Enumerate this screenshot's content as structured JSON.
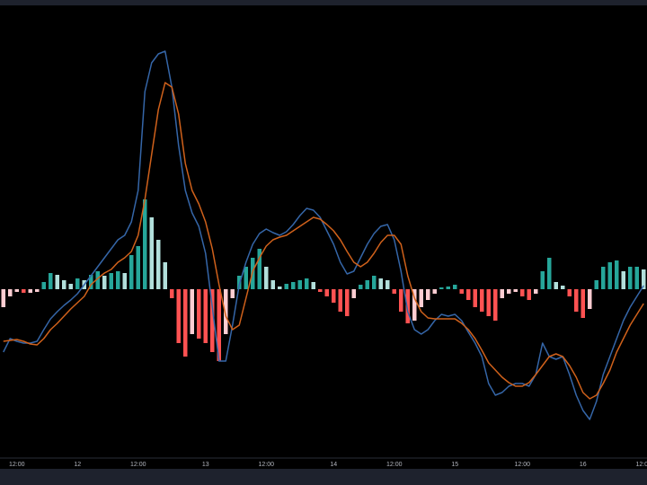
{
  "chart_data": {
    "type": "combo",
    "categories": [
      null,
      null,
      "12:00",
      null,
      null,
      null,
      null,
      null,
      null,
      null,
      null,
      "12",
      null,
      null,
      null,
      null,
      null,
      null,
      null,
      null,
      "12:00",
      null,
      null,
      null,
      null,
      null,
      null,
      null,
      null,
      null,
      "13",
      null,
      null,
      null,
      null,
      null,
      null,
      null,
      null,
      "12:00",
      null,
      null,
      null,
      null,
      null,
      null,
      null,
      null,
      null,
      "14",
      null,
      null,
      null,
      null,
      null,
      null,
      null,
      null,
      "12:00",
      null,
      null,
      null,
      null,
      null,
      null,
      null,
      null,
      "15",
      null,
      null,
      null,
      null,
      null,
      null,
      null,
      null,
      null,
      "12:00",
      null,
      null,
      null,
      null,
      null,
      null,
      null,
      null,
      "16",
      null,
      null,
      null,
      null,
      null,
      null,
      null,
      null,
      "12:00"
    ],
    "ylim": [
      -188,
      317
    ],
    "background": "#000000",
    "series": [
      {
        "kind": "bar",
        "colors": {
          "rising_above": "#26a69a",
          "falling_above": "#b2dfdb",
          "rising_below": "#ffcdd2",
          "falling_below": "#ff5252"
        },
        "values": [
          -20,
          -8,
          -3,
          -4,
          -4,
          -3,
          8,
          18,
          16,
          10,
          6,
          12,
          10,
          16,
          20,
          15,
          18,
          20,
          18,
          38,
          48,
          100,
          80,
          55,
          30,
          -10,
          -60,
          -75,
          -50,
          -55,
          -60,
          -70,
          -80,
          -50,
          -10,
          15,
          25,
          35,
          45,
          25,
          10,
          3,
          6,
          8,
          10,
          12,
          8,
          -3,
          -8,
          -15,
          -25,
          -30,
          -10,
          5,
          10,
          15,
          12,
          10,
          -5,
          -25,
          -38,
          -35,
          -20,
          -12,
          -5,
          2,
          3,
          5,
          -5,
          -12,
          -20,
          -25,
          -30,
          -35,
          -10,
          -5,
          -3,
          -8,
          -12,
          -5,
          20,
          35,
          8,
          4,
          -8,
          -25,
          -32,
          -22,
          10,
          25,
          30,
          32,
          20,
          25,
          25,
          22
        ]
      },
      {
        "kind": "line",
        "color": "#3566a8",
        "values": [
          -70,
          -55,
          -58,
          -60,
          -60,
          -58,
          -45,
          -33,
          -25,
          -18,
          -12,
          -5,
          5,
          15,
          25,
          35,
          45,
          55,
          60,
          75,
          110,
          220,
          252,
          262,
          265,
          225,
          160,
          110,
          85,
          70,
          40,
          -20,
          -80,
          -80,
          -40,
          5,
          30,
          50,
          62,
          67,
          63,
          60,
          64,
          72,
          82,
          90,
          88,
          80,
          65,
          50,
          30,
          17,
          20,
          35,
          50,
          62,
          70,
          72,
          55,
          20,
          -25,
          -45,
          -50,
          -45,
          -35,
          -28,
          -30,
          -28,
          -35,
          -48,
          -60,
          -75,
          -105,
          -118,
          -115,
          -108,
          -105,
          -105,
          -108,
          -95,
          -60,
          -75,
          -78,
          -75,
          -95,
          -118,
          -135,
          -145,
          -125,
          -95,
          -75,
          -55,
          -35,
          -20,
          -8,
          4
        ]
      },
      {
        "kind": "line",
        "color": "#d0611b",
        "values": [
          -58,
          -57,
          -56,
          -58,
          -61,
          -62,
          -55,
          -45,
          -38,
          -30,
          -22,
          -15,
          -8,
          5,
          12,
          18,
          22,
          30,
          35,
          42,
          60,
          100,
          150,
          200,
          230,
          225,
          195,
          140,
          110,
          95,
          75,
          45,
          5,
          -30,
          -45,
          -40,
          -10,
          20,
          35,
          48,
          55,
          58,
          60,
          65,
          70,
          75,
          80,
          78,
          72,
          65,
          55,
          42,
          30,
          25,
          30,
          40,
          52,
          60,
          60,
          50,
          15,
          -10,
          -25,
          -32,
          -33,
          -33,
          -33,
          -33,
          -38,
          -45,
          -55,
          -68,
          -82,
          -90,
          -98,
          -104,
          -108,
          -108,
          -104,
          -95,
          -85,
          -75,
          -72,
          -75,
          -85,
          -98,
          -115,
          -122,
          -118,
          -105,
          -90,
          -70,
          -55,
          -40,
          -28,
          -16
        ]
      }
    ]
  }
}
